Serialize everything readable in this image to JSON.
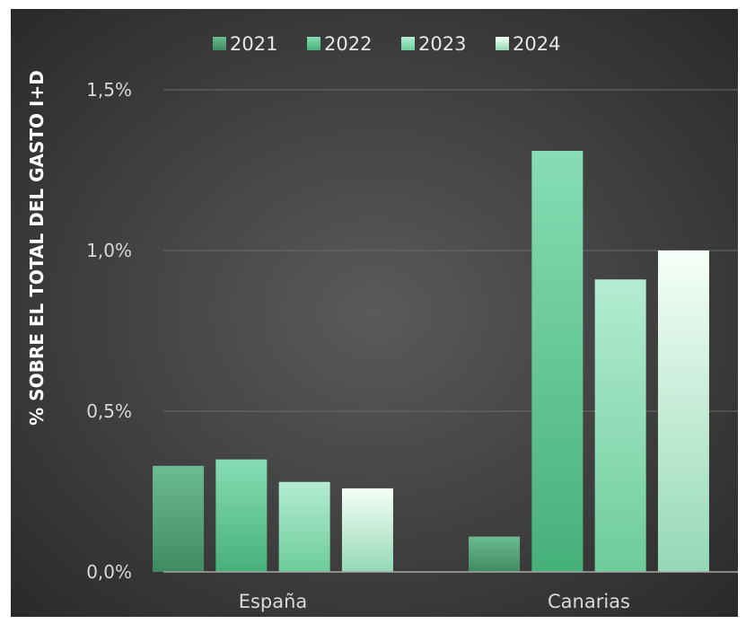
{
  "chart_data": {
    "type": "bar",
    "title": "",
    "ylabel": "% SOBRE EL TOTAL DEL GASTO I+D",
    "xlabel": "",
    "categories": [
      "España",
      "Canarias"
    ],
    "series": [
      {
        "name": "2021",
        "values": [
          0.33,
          0.11
        ],
        "color_top": "#6dbb93",
        "color_bottom": "#3f8a63"
      },
      {
        "name": "2022",
        "values": [
          0.35,
          1.31
        ],
        "color_top": "#87ddb4",
        "color_bottom": "#46b079"
      },
      {
        "name": "2023",
        "values": [
          0.28,
          0.91
        ],
        "color_top": "#b4ecd3",
        "color_bottom": "#6dcc9a"
      },
      {
        "name": "2024",
        "values": [
          0.26,
          1.0
        ],
        "color_top": "#f6fff9",
        "color_bottom": "#94d8b5"
      }
    ],
    "ylim": [
      0,
      1.5
    ],
    "yticks": [
      {
        "value": 0,
        "label": "0,0%"
      },
      {
        "value": 0.5,
        "label": "0,5%"
      },
      {
        "value": 1.0,
        "label": "1,0%"
      },
      {
        "value": 1.5,
        "label": "1,5%"
      }
    ],
    "grid": true,
    "legend_position": "top",
    "colors": {
      "background_center": "#5a5a5a",
      "background_edge": "#2a2a2a",
      "gridline": "#6a6a6a",
      "axis_line": "#a6a6a6",
      "text": "#d9d9d9",
      "title_text": "#ffffff"
    }
  }
}
